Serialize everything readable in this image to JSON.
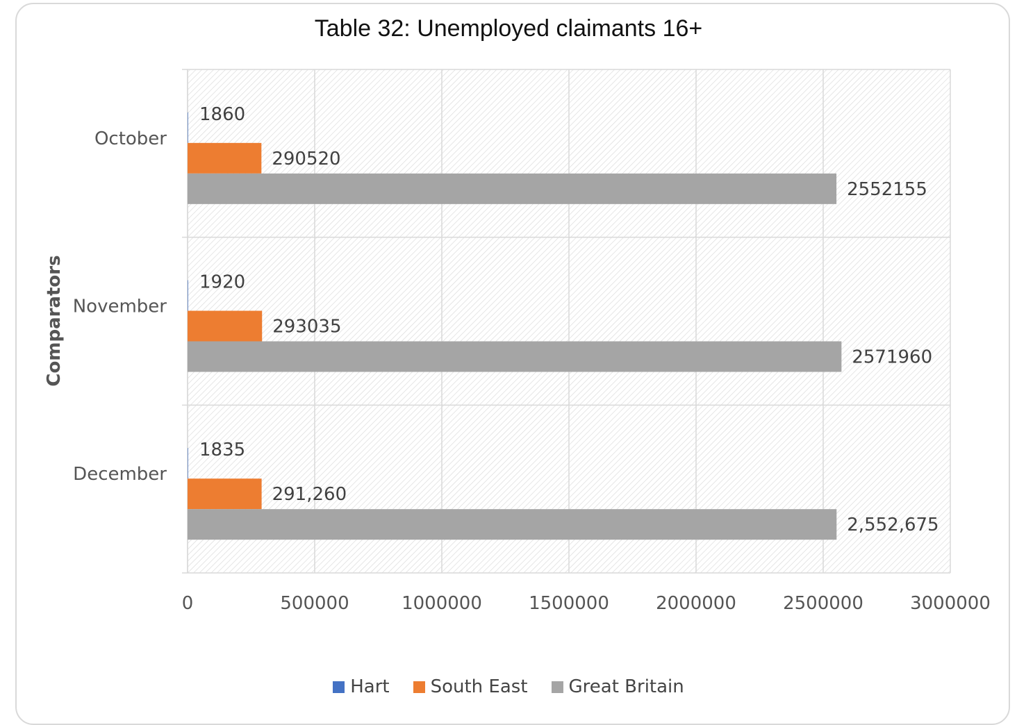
{
  "chart_data": {
    "type": "bar",
    "orientation": "horizontal",
    "title": "Table 32: Unemployed claimants 16+",
    "ylabel": "Comparators",
    "xlabel": "",
    "categories": [
      "October",
      "November",
      "December"
    ],
    "xlim": [
      0,
      3000000
    ],
    "xticks": [
      0,
      500000,
      1000000,
      1500000,
      2000000,
      2500000,
      3000000
    ],
    "xtick_labels": [
      "0",
      "500000",
      "1000000",
      "1500000",
      "2000000",
      "2500000",
      "3000000"
    ],
    "grid": true,
    "legend_position": "bottom",
    "series": [
      {
        "name": "Hart",
        "color": "#4472c4",
        "values": [
          1860,
          1920,
          1835
        ],
        "labels": [
          "1860",
          "1920",
          "1835"
        ]
      },
      {
        "name": "South East",
        "color": "#ed7d31",
        "values": [
          290520,
          293035,
          291260
        ],
        "labels": [
          "290520",
          "293035",
          "291,260"
        ]
      },
      {
        "name": "Great Britain",
        "color": "#a5a5a5",
        "values": [
          2552155,
          2571960,
          2552675
        ],
        "labels": [
          "2552155",
          "2571960",
          "2,552,675"
        ]
      }
    ]
  }
}
